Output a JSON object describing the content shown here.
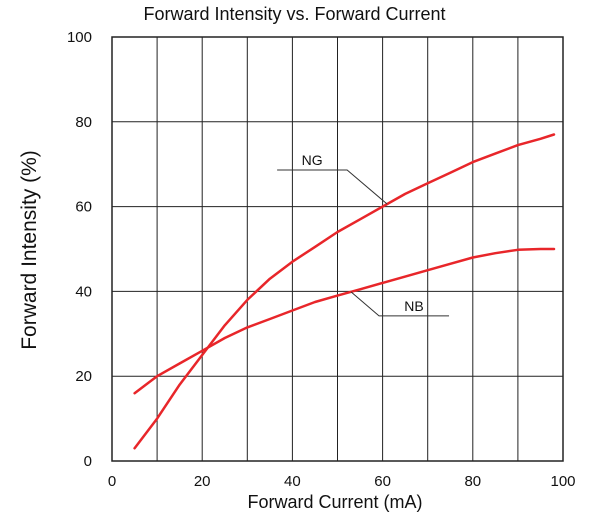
{
  "chart_data": {
    "type": "line",
    "title": "Forward Intensity vs. Forward Current",
    "xlabel": "Forward Current (mA)",
    "ylabel": "Forward Intensity (%)",
    "xlim": [
      0,
      100
    ],
    "ylim": [
      0,
      100
    ],
    "xticks": [
      0,
      20,
      40,
      60,
      80,
      100
    ],
    "yticks": [
      0,
      20,
      40,
      60,
      80,
      100
    ],
    "grid": true,
    "series": [
      {
        "name": "NG",
        "color": "#e8262a",
        "x": [
          5,
          10,
          15,
          20,
          25,
          30,
          35,
          40,
          45,
          50,
          55,
          60,
          65,
          70,
          75,
          80,
          85,
          90,
          95,
          98
        ],
        "y": [
          3,
          10,
          18,
          25,
          32,
          38,
          43,
          47,
          50.5,
          54,
          57,
          60,
          63,
          65.5,
          68,
          70.5,
          72.5,
          74.5,
          76,
          77
        ]
      },
      {
        "name": "NB",
        "color": "#e8262a",
        "x": [
          5,
          10,
          15,
          20,
          25,
          30,
          35,
          40,
          45,
          50,
          55,
          60,
          65,
          70,
          75,
          80,
          85,
          90,
          95,
          98
        ],
        "y": [
          16,
          20,
          23,
          26,
          29,
          31.5,
          33.5,
          35.5,
          37.5,
          39,
          40.5,
          42,
          43.5,
          45,
          46.5,
          48,
          49,
          49.8,
          50,
          50
        ]
      }
    ],
    "annotations": [
      {
        "text": "NG",
        "series": "NG",
        "at_x": 61
      },
      {
        "text": "NB",
        "series": "NB",
        "at_x": 53
      }
    ]
  }
}
